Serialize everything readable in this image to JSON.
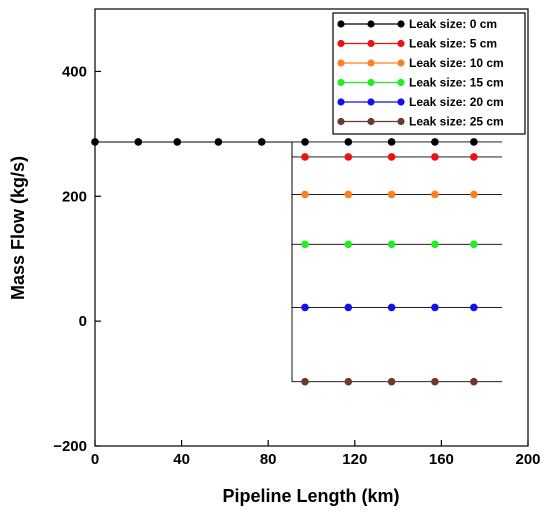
{
  "chart_data": {
    "type": "line",
    "xlabel": "Pipeline Length (km)",
    "ylabel": "Mass Flow (kg/s)",
    "xlim": [
      0,
      200
    ],
    "ylim": [
      -200,
      500
    ],
    "x_ticks": [
      0,
      40,
      80,
      120,
      160,
      200
    ],
    "x_tick_labels": [
      "0",
      "40",
      "80",
      "120",
      "160",
      "200"
    ],
    "y_ticks": [
      -200,
      0,
      200,
      400
    ],
    "y_tick_labels": [
      "−200",
      "0",
      "200",
      "400"
    ],
    "grid": false,
    "legend_position": "top-right",
    "leak_position_km": 91,
    "x_end_km": 188,
    "upstream_flow": 287,
    "upstream_marker_x": [
      0,
      20,
      38,
      57,
      77
    ],
    "downstream_marker_x": [
      97,
      117,
      137,
      157,
      175
    ],
    "series": [
      {
        "name": "Leak size: 0 cm",
        "color": "#000000",
        "downstream_flow": 287
      },
      {
        "name": "Leak size: 5 cm",
        "color": "#ee1111",
        "downstream_flow": 263
      },
      {
        "name": "Leak size: 10 cm",
        "color": "#ff7f1e",
        "downstream_flow": 203
      },
      {
        "name": "Leak size: 15 cm",
        "color": "#22ee22",
        "downstream_flow": 123
      },
      {
        "name": "Leak size: 20 cm",
        "color": "#1111ee",
        "downstream_flow": 22
      },
      {
        "name": "Leak size: 25 cm",
        "color": "#6b3a2a",
        "downstream_flow": -97
      }
    ]
  }
}
